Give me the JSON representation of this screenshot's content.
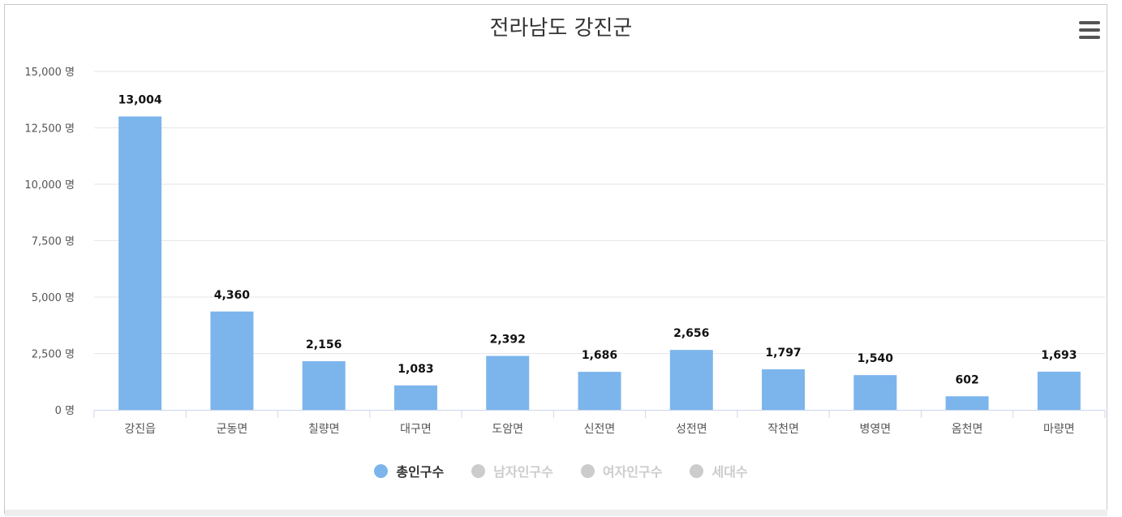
{
  "chart_data": {
    "type": "bar",
    "title": "전라남도 강진군",
    "categories": [
      "강진읍",
      "군동면",
      "칠량면",
      "대구면",
      "도암면",
      "신전면",
      "성전면",
      "작천면",
      "병영면",
      "옴천면",
      "마량면"
    ],
    "series": [
      {
        "name": "총인구수",
        "values": [
          13004,
          4360,
          2156,
          1083,
          2392,
          1686,
          2656,
          1797,
          1540,
          602,
          1693
        ],
        "color": "#7cb5ec",
        "visible": true
      }
    ],
    "data_labels": [
      "13,004",
      "4,360",
      "2,156",
      "1,083",
      "2,392",
      "1,686",
      "2,656",
      "1,797",
      "1,540",
      "602",
      "1,693"
    ],
    "ylim": [
      0,
      15000
    ],
    "yticks": [
      0,
      2500,
      5000,
      7500,
      10000,
      12500,
      15000
    ],
    "ytick_labels": [
      "0 명",
      "2,500 명",
      "5,000 명",
      "7,500 명",
      "10,000 명",
      "12,500 명",
      "15,000 명"
    ],
    "grid": true,
    "legend_position": "bottom-center"
  },
  "legend": [
    {
      "label": "총인구수",
      "color": "#7cb5ec",
      "active": true
    },
    {
      "label": "남자인구수",
      "color": "#cccccc",
      "active": false
    },
    {
      "label": "여자인구수",
      "color": "#cccccc",
      "active": false
    },
    {
      "label": "세대수",
      "color": "#cccccc",
      "active": false
    }
  ],
  "menu_icon": "hamburger-menu-icon"
}
